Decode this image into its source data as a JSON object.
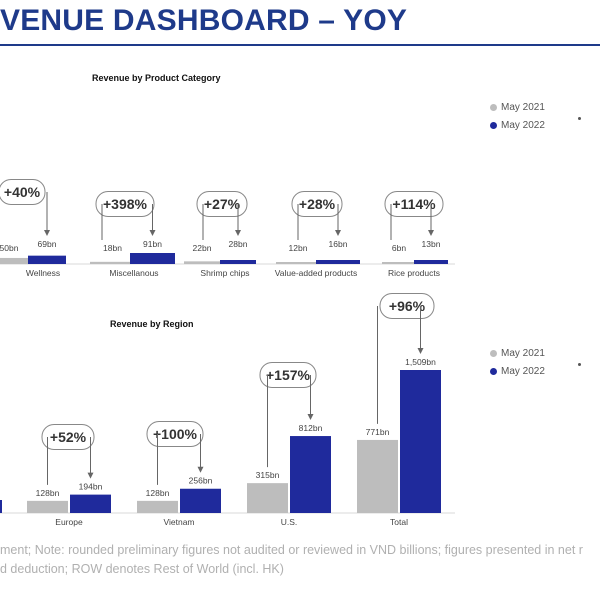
{
  "page": {
    "title": "VENUE DASHBOARD – YOY",
    "footnote_line1": "ment; Note: rounded preliminary figures not audited or reviewed in VND billions; figures presented in net r",
    "footnote_line2": "d deduction; ROW denotes Rest of World (incl. HK)"
  },
  "colors": {
    "may2021": "#bdbdbd",
    "may2022": "#1f2a9c",
    "title": "#1e3a8a"
  },
  "chart_data": [
    {
      "type": "bar",
      "title": "Revenue by Product Category",
      "categories": [
        "Wellness",
        "Miscellanous",
        "Shrimp chips",
        "Value-added products",
        "Rice products"
      ],
      "series": [
        {
          "name": "May 2021",
          "values": [
            50,
            18,
            22,
            12,
            6
          ],
          "labels": [
            "50bn",
            "18bn",
            "22bn",
            "12bn",
            "6bn"
          ]
        },
        {
          "name": "May 2022",
          "values": [
            69,
            91,
            28,
            16,
            13
          ],
          "labels": [
            "69bn",
            "91bn",
            "28bn",
            "16bn",
            "13bn"
          ]
        }
      ],
      "growth_labels": [
        "+40%",
        "+398%",
        "+27%",
        "+28%",
        "+114%"
      ],
      "legend_position": "top-right"
    },
    {
      "type": "bar",
      "title": "Revenue by Region",
      "categories": [
        "",
        "Europe",
        "Vietnam",
        "U.S.",
        "Total"
      ],
      "series": [
        {
          "name": "May 2021",
          "values": [
            0,
            128,
            128,
            315,
            771
          ],
          "labels": [
            "",
            "128bn",
            "128bn",
            "315bn",
            "771bn"
          ]
        },
        {
          "name": "May 2022",
          "values": [
            0,
            194,
            256,
            812,
            1509
          ],
          "labels": [
            "",
            "194bn",
            "256bn",
            "812bn",
            "1,509bn"
          ]
        }
      ],
      "growth_labels": [
        "",
        "+52%",
        "+100%",
        "+157%",
        "+96%"
      ],
      "legend_position": "top-right"
    }
  ]
}
